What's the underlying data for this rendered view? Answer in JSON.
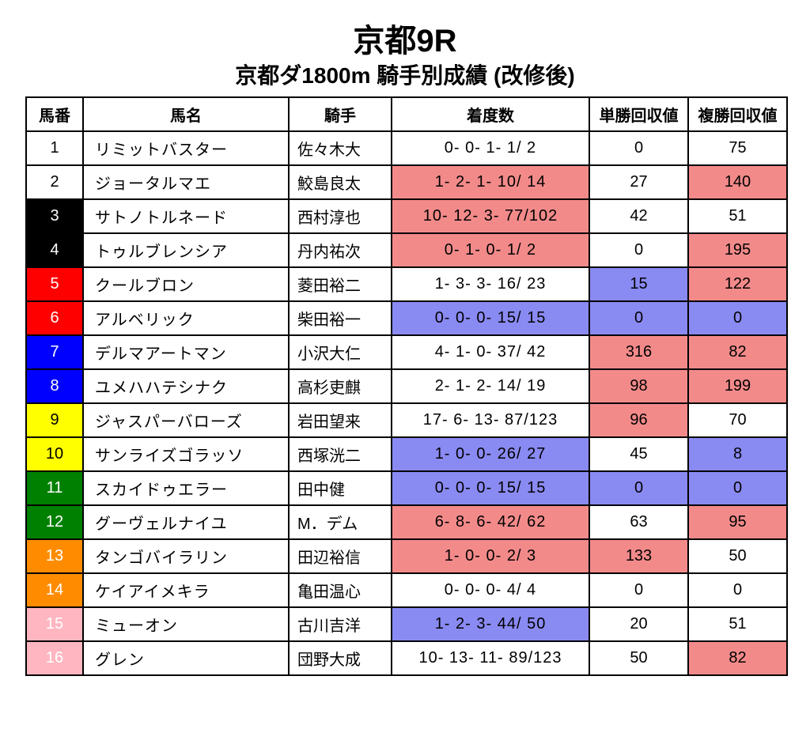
{
  "title": "京都9R",
  "subtitle": "京都ダ1800m 騎手別成績 (改修後)",
  "columns": [
    "馬番",
    "馬名",
    "騎手",
    "着度数",
    "単勝回収値",
    "複勝回収値"
  ],
  "colors": {
    "white": "#ffffff",
    "black": "#000000",
    "red": "#ff0000",
    "blue": "#0000ff",
    "yellow": "#ffff00",
    "green": "#008000",
    "orange": "#ff8c00",
    "pink": "#ffb6c1",
    "hl_red": "#f38a8a",
    "hl_blue": "#8a8af3",
    "text_white": "#ffffff",
    "text_black": "#000000"
  },
  "rows": [
    {
      "num": "1",
      "num_bg": "white",
      "num_fg": "text_black",
      "name": "リミットバスター",
      "jockey": "佐々木大",
      "rec": "0-  0-  1-  1/  2",
      "rec_hl": null,
      "win": "0",
      "win_hl": null,
      "place": "75",
      "place_hl": null
    },
    {
      "num": "2",
      "num_bg": "white",
      "num_fg": "text_black",
      "name": "ジョータルマエ",
      "jockey": "鮫島良太",
      "rec": "1-  2-  1- 10/ 14",
      "rec_hl": "hl_red",
      "win": "27",
      "win_hl": null,
      "place": "140",
      "place_hl": "hl_red"
    },
    {
      "num": "3",
      "num_bg": "black",
      "num_fg": "text_white",
      "name": "サトノトルネード",
      "jockey": "西村淳也",
      "rec": "10- 12-  3- 77/102",
      "rec_hl": "hl_red",
      "win": "42",
      "win_hl": null,
      "place": "51",
      "place_hl": null
    },
    {
      "num": "4",
      "num_bg": "black",
      "num_fg": "text_white",
      "name": "トゥルブレンシア",
      "jockey": "丹内祐次",
      "rec": "0-  1-  0-  1/  2",
      "rec_hl": "hl_red",
      "win": "0",
      "win_hl": null,
      "place": "195",
      "place_hl": "hl_red"
    },
    {
      "num": "5",
      "num_bg": "red",
      "num_fg": "text_white",
      "name": "クールブロン",
      "jockey": "菱田裕二",
      "rec": "1-  3-  3- 16/ 23",
      "rec_hl": null,
      "win": "15",
      "win_hl": "hl_blue",
      "place": "122",
      "place_hl": "hl_red"
    },
    {
      "num": "6",
      "num_bg": "red",
      "num_fg": "text_white",
      "name": "アルベリック",
      "jockey": "柴田裕一",
      "rec": "0-  0-  0- 15/ 15",
      "rec_hl": "hl_blue",
      "win": "0",
      "win_hl": "hl_blue",
      "place": "0",
      "place_hl": "hl_blue"
    },
    {
      "num": "7",
      "num_bg": "blue",
      "num_fg": "text_white",
      "name": "デルマアートマン",
      "jockey": "小沢大仁",
      "rec": "4-  1-  0- 37/ 42",
      "rec_hl": null,
      "win": "316",
      "win_hl": "hl_red",
      "place": "82",
      "place_hl": "hl_red"
    },
    {
      "num": "8",
      "num_bg": "blue",
      "num_fg": "text_white",
      "name": "ユメハハテシナク",
      "jockey": "高杉吏麒",
      "rec": "2-  1-  2- 14/ 19",
      "rec_hl": null,
      "win": "98",
      "win_hl": "hl_red",
      "place": "199",
      "place_hl": "hl_red"
    },
    {
      "num": "9",
      "num_bg": "yellow",
      "num_fg": "text_black",
      "name": "ジャスパーバローズ",
      "jockey": "岩田望来",
      "rec": "17-  6- 13- 87/123",
      "rec_hl": null,
      "win": "96",
      "win_hl": "hl_red",
      "place": "70",
      "place_hl": null
    },
    {
      "num": "10",
      "num_bg": "yellow",
      "num_fg": "text_black",
      "name": "サンライズゴラッソ",
      "jockey": "西塚洸二",
      "rec": "1-  0-  0- 26/ 27",
      "rec_hl": "hl_blue",
      "win": "45",
      "win_hl": null,
      "place": "8",
      "place_hl": "hl_blue"
    },
    {
      "num": "11",
      "num_bg": "green",
      "num_fg": "text_white",
      "name": "スカイドゥエラー",
      "jockey": "田中健",
      "rec": "0-  0-  0- 15/ 15",
      "rec_hl": "hl_blue",
      "win": "0",
      "win_hl": "hl_blue",
      "place": "0",
      "place_hl": "hl_blue"
    },
    {
      "num": "12",
      "num_bg": "green",
      "num_fg": "text_white",
      "name": "グーヴェルナイユ",
      "jockey": "M．デム",
      "rec": "6-  8-  6- 42/ 62",
      "rec_hl": "hl_red",
      "win": "63",
      "win_hl": null,
      "place": "95",
      "place_hl": "hl_red"
    },
    {
      "num": "13",
      "num_bg": "orange",
      "num_fg": "text_white",
      "name": "タンゴバイラリン",
      "jockey": "田辺裕信",
      "rec": "1-  0-  0-  2/  3",
      "rec_hl": "hl_red",
      "win": "133",
      "win_hl": "hl_red",
      "place": "50",
      "place_hl": null
    },
    {
      "num": "14",
      "num_bg": "orange",
      "num_fg": "text_white",
      "name": "ケイアイメキラ",
      "jockey": "亀田温心",
      "rec": "0-  0-  0-  4/  4",
      "rec_hl": null,
      "win": "0",
      "win_hl": null,
      "place": "0",
      "place_hl": null
    },
    {
      "num": "15",
      "num_bg": "pink",
      "num_fg": "text_white",
      "name": "ミューオン",
      "jockey": "古川吉洋",
      "rec": "1-  2-  3- 44/ 50",
      "rec_hl": "hl_blue",
      "win": "20",
      "win_hl": null,
      "place": "51",
      "place_hl": null
    },
    {
      "num": "16",
      "num_bg": "pink",
      "num_fg": "text_white",
      "name": "グレン",
      "jockey": "団野大成",
      "rec": "10- 13- 11- 89/123",
      "rec_hl": null,
      "win": "50",
      "win_hl": null,
      "place": "82",
      "place_hl": "hl_red"
    }
  ]
}
